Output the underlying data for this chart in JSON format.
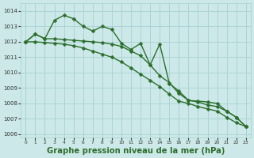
{
  "background_color": "#cce8e8",
  "grid_color": "#aad4d4",
  "line_color": "#2d6e2d",
  "xlabel": "Graphe pression niveau de la mer (hPa)",
  "xlim": [
    -0.5,
    23.5
  ],
  "ylim": [
    1005.8,
    1014.5
  ],
  "yticks": [
    1006,
    1007,
    1008,
    1009,
    1010,
    1011,
    1012,
    1013,
    1014
  ],
  "xticks": [
    0,
    1,
    2,
    3,
    4,
    5,
    6,
    7,
    8,
    9,
    10,
    11,
    12,
    13,
    14,
    15,
    16,
    17,
    18,
    19,
    20,
    21,
    22,
    23
  ],
  "series1_x": [
    0,
    1,
    2,
    3,
    4,
    5,
    6,
    7,
    8,
    9,
    10,
    11,
    12,
    13,
    14,
    15,
    16,
    17,
    18,
    19,
    20,
    21,
    22,
    23
  ],
  "series1_y": [
    1012.0,
    1012.5,
    1012.2,
    1013.4,
    1013.72,
    1013.5,
    1013.0,
    1012.7,
    1013.0,
    1012.8,
    1011.9,
    1011.5,
    1011.9,
    1010.5,
    1011.85,
    1009.3,
    1008.8,
    1008.2,
    1008.15,
    1008.1,
    1008.0,
    1007.5,
    1007.1,
    1006.5
  ],
  "series2_x": [
    0,
    1,
    2,
    3,
    4,
    5,
    6,
    7,
    8,
    9,
    10,
    11,
    12,
    13,
    14,
    15,
    16,
    17,
    18,
    19,
    20,
    21,
    22,
    23
  ],
  "series2_y": [
    1012.0,
    1012.5,
    1012.2,
    1012.2,
    1012.15,
    1012.1,
    1012.05,
    1012.0,
    1011.95,
    1011.85,
    1011.7,
    1011.4,
    1011.1,
    1010.5,
    1009.8,
    1009.35,
    1008.65,
    1008.2,
    1008.1,
    1007.9,
    1007.8,
    1007.5,
    1007.1,
    1006.5
  ],
  "series3_x": [
    0,
    1,
    2,
    3,
    4,
    5,
    6,
    7,
    8,
    9,
    10,
    11,
    12,
    13,
    14,
    15,
    16,
    17,
    18,
    19,
    20,
    21,
    22,
    23
  ],
  "series3_y": [
    1012.0,
    1012.0,
    1011.95,
    1011.9,
    1011.85,
    1011.75,
    1011.6,
    1011.4,
    1011.2,
    1011.0,
    1010.7,
    1010.3,
    1009.9,
    1009.5,
    1009.1,
    1008.6,
    1008.15,
    1008.0,
    1007.8,
    1007.65,
    1007.5,
    1007.1,
    1006.75,
    1006.5
  ]
}
